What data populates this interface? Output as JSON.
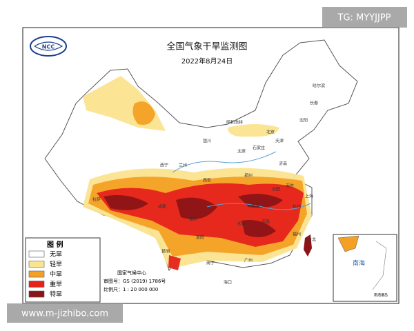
{
  "header": {
    "title": "全国气象干旱监测图",
    "date": "2022年8月24日"
  },
  "legend": {
    "title": "图  例",
    "items": [
      {
        "label": "无旱",
        "color": "#ffffff"
      },
      {
        "label": "轻旱",
        "color": "#fbe48f"
      },
      {
        "label": "中旱",
        "color": "#f4a024"
      },
      {
        "label": "重旱",
        "color": "#e5231b"
      },
      {
        "label": "特旱",
        "color": "#8c1416"
      }
    ]
  },
  "source": {
    "agency": "国家气候中心",
    "approval": "审图号：GS (2019) 1786号",
    "scale": "比例尺：1 : 20 000 000"
  },
  "inset": {
    "sea": "南海",
    "caption": "南海诸岛"
  },
  "cities": [
    "哈尔滨",
    "长春",
    "沈阳",
    "呼和浩特",
    "北京",
    "天津",
    "石家庄",
    "济南",
    "太原",
    "银川",
    "兰州",
    "西宁",
    "西安",
    "郑州",
    "合肥",
    "南京",
    "上海",
    "武汉",
    "杭州",
    "成都",
    "重庆",
    "长沙",
    "南昌",
    "福州",
    "贵阳",
    "昆明",
    "南宁",
    "广州",
    "台北",
    "海口",
    "拉萨"
  ],
  "watermarks": {
    "top": "TG: MYYJJPP",
    "bottom": "www.m-jizhibo.com"
  }
}
